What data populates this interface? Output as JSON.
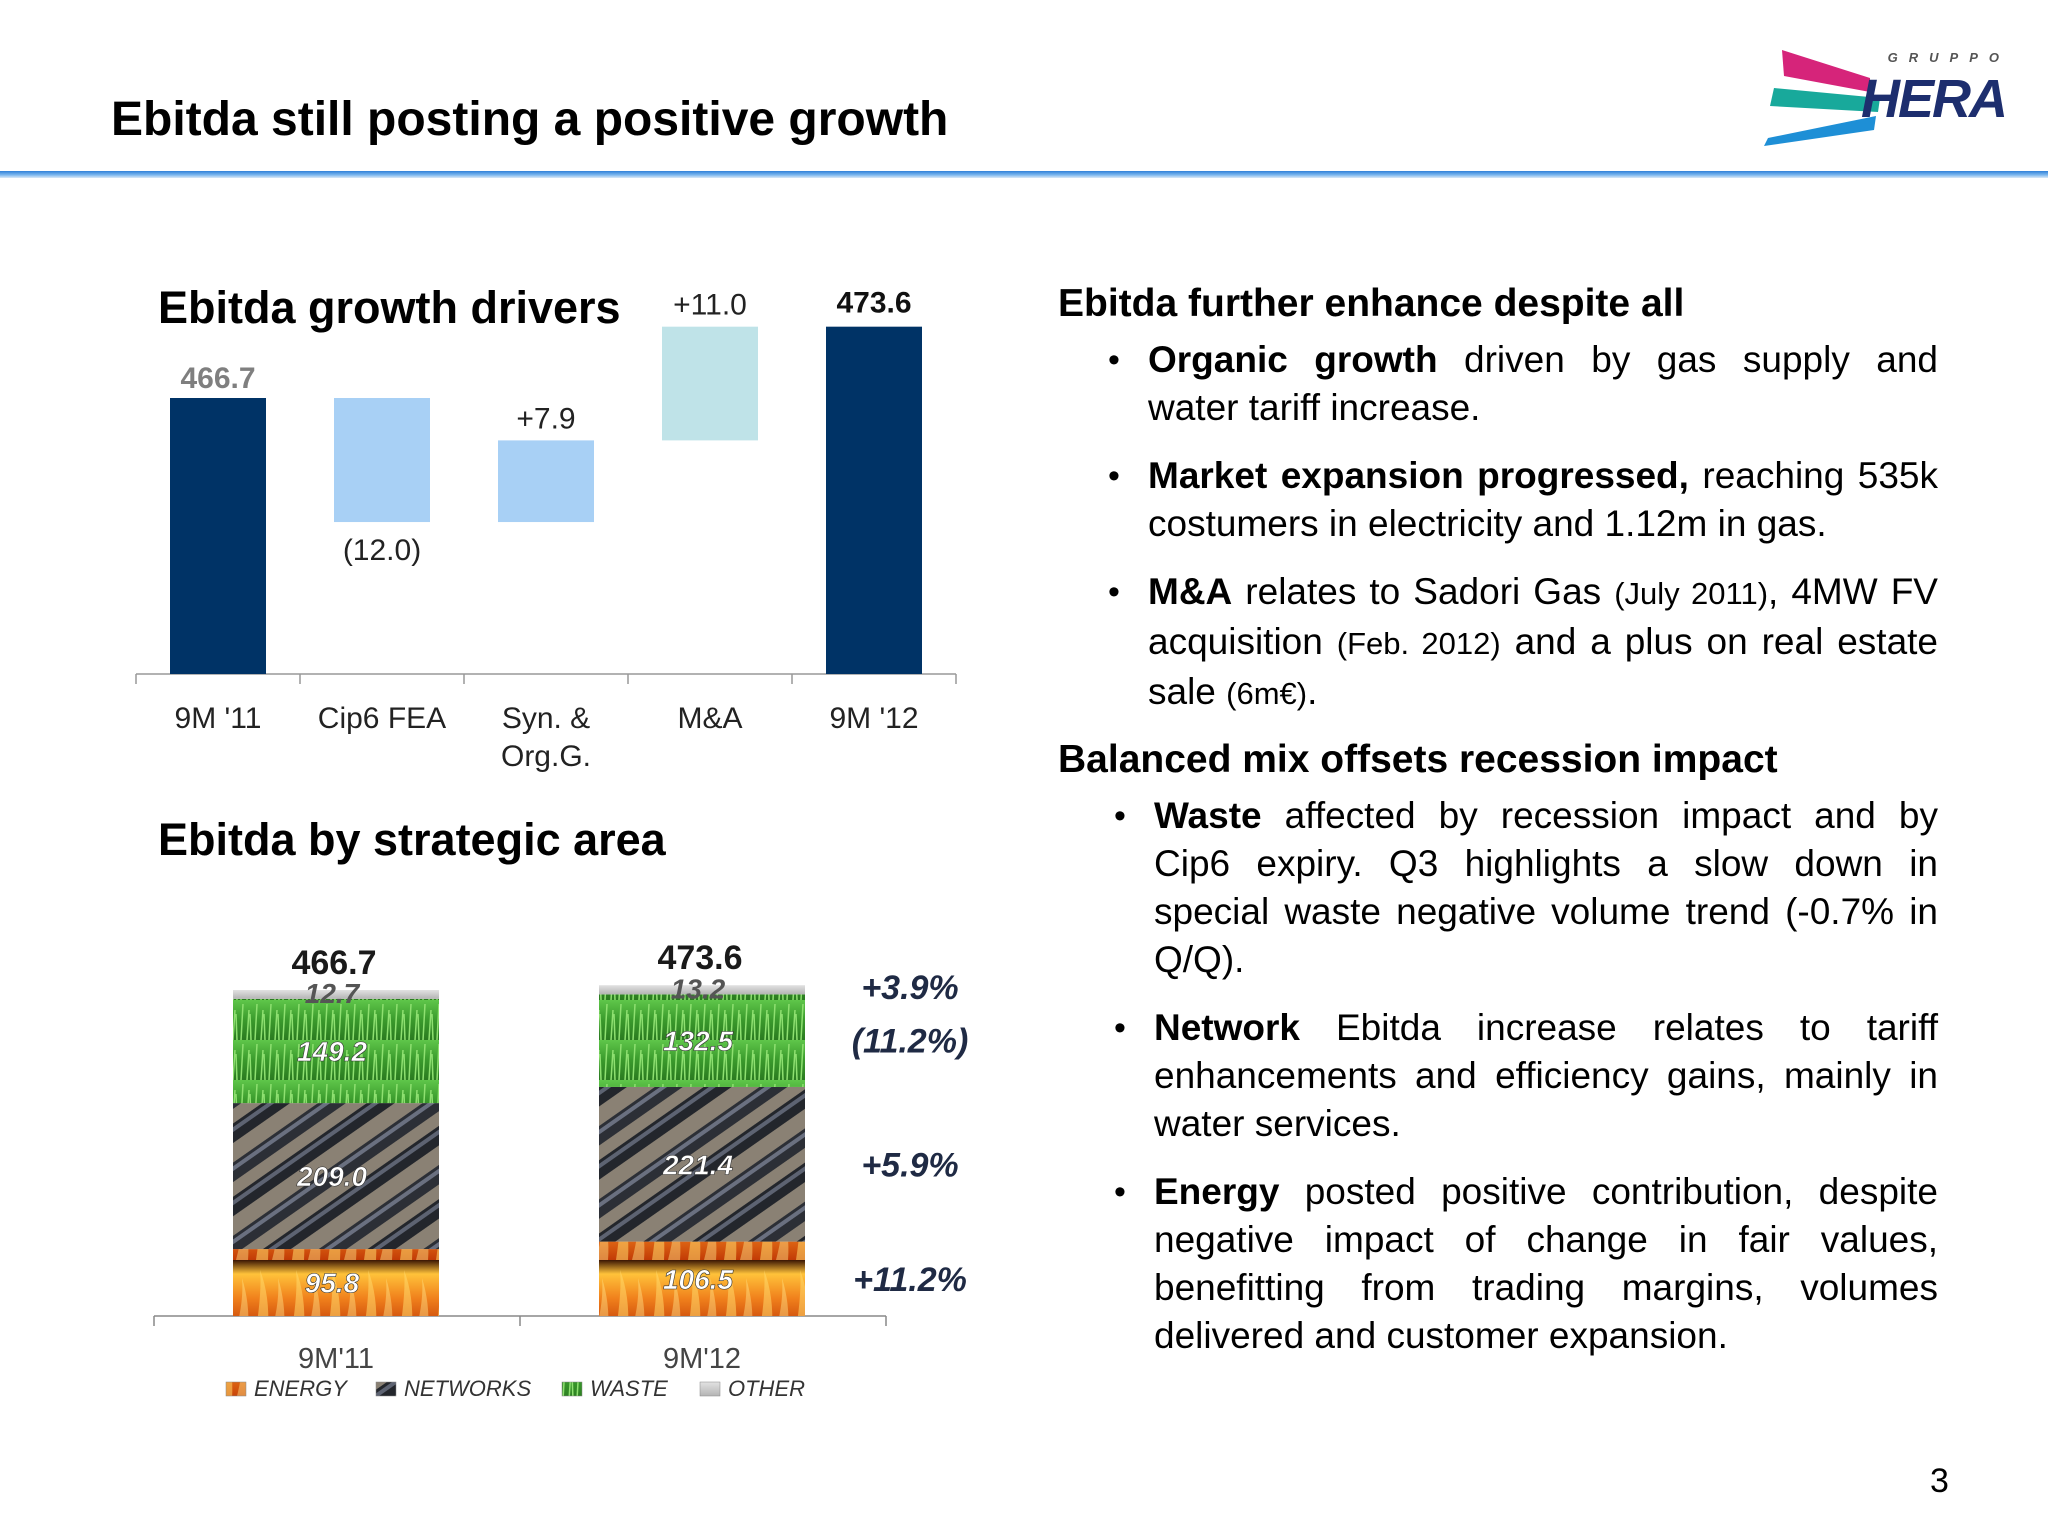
{
  "slide": {
    "title": "Ebitda still posting a positive growth",
    "page_number": "3"
  },
  "logo": {
    "top_text": "GRUPPO",
    "name": "HERA"
  },
  "colors": {
    "navy": "#003366",
    "light_blue": "#a8d0f5",
    "pale_teal": "#bfe3e8",
    "accent_blue": "#2f80d8",
    "logo_magenta": "#d6247a",
    "logo_teal": "#18a99b",
    "logo_blue": "#1e8fd6"
  },
  "left": {
    "heading_drivers": "Ebitda growth drivers",
    "heading_area": "Ebitda by strategic area"
  },
  "chart_data": [
    {
      "type": "bar",
      "subtype": "waterfall",
      "categories": [
        "9M '11",
        "Cip6 FEA",
        "Syn. & Org.G.",
        "M&A",
        "9M '12"
      ],
      "category_lines": [
        [
          "9M '11"
        ],
        [
          "Cip6 FEA"
        ],
        [
          "Syn. &",
          "Org.G."
        ],
        [
          "M&A"
        ],
        [
          "9M '12"
        ]
      ],
      "values": [
        466.7,
        -12.0,
        7.9,
        11.0,
        473.6
      ],
      "value_labels": [
        "466.7",
        "(12.0)",
        "+7.9",
        "+11.0",
        "473.6"
      ],
      "kinds": [
        "total",
        "delta",
        "delta",
        "delta",
        "total"
      ],
      "colors": [
        "#003366",
        "#a8d0f5",
        "#a8d0f5",
        "#bfe3e8",
        "#003366"
      ],
      "grid": false,
      "legend": "none"
    },
    {
      "type": "bar",
      "subtype": "stacked",
      "categories": [
        "9M'11",
        "9M'12"
      ],
      "totals": [
        "466.7",
        "473.6"
      ],
      "series": [
        {
          "name": "ENERGY",
          "values": [
            95.8,
            106.5
          ],
          "labels": [
            "95.8",
            "106.5"
          ],
          "change": "+11.2%",
          "color": "#e8601c"
        },
        {
          "name": "NETWORKS",
          "values": [
            209.0,
            221.4
          ],
          "labels": [
            "209.0",
            "221.4"
          ],
          "change": "+5.9%",
          "color": "#5a5a5a"
        },
        {
          "name": "WASTE",
          "values": [
            149.2,
            132.5
          ],
          "labels": [
            "149.2",
            "132.5"
          ],
          "change": "(11.2%)",
          "color": "#3a9a2c"
        },
        {
          "name": "OTHER",
          "values": [
            12.7,
            13.2
          ],
          "labels": [
            "12.7",
            "13.2"
          ],
          "change": "+3.9%",
          "color": "#c8c8c8"
        }
      ],
      "grid": false,
      "legend": "bottom"
    }
  ],
  "right": {
    "heading1": "Ebitda further enhance despite all",
    "bullets1": [
      {
        "bold": "Organic growth",
        "text": " driven by gas supply and water tariff increase."
      },
      {
        "bold": "Market expansion progressed,",
        "text": " reaching 535k costumers in electricity and 1.12m in gas."
      },
      {
        "bold": "M&A",
        "p1": " relates to Sadori Gas ",
        "s1": "(July 2011)",
        "p2": ", 4MW FV acquisition ",
        "s2": "(Feb. 2012)",
        "p3": " and a plus on real estate sale ",
        "s3": "(6m€)",
        "p4": "."
      }
    ],
    "heading2": "Balanced mix offsets recession impact",
    "bullets2": [
      {
        "bold": "Waste",
        "text": " affected by recession impact and by Cip6 expiry. Q3 highlights a slow down in special waste negative volume trend (-0.7% in Q/Q)."
      },
      {
        "bold": "Network",
        "text": " Ebitda increase relates to tariff enhancements and efficiency gains, mainly in water services."
      },
      {
        "bold": "Energy",
        "text": " posted positive contribution, despite negative impact of change in fair values, benefitting from trading margins, volumes delivered and customer expansion."
      }
    ]
  }
}
